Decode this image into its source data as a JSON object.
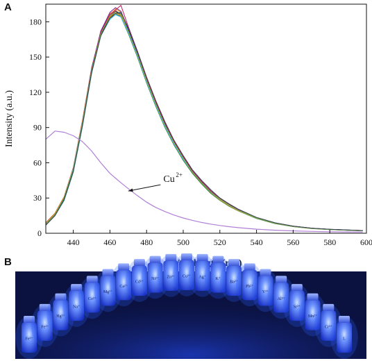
{
  "panel_a": {
    "letter": "A",
    "chart_data": {
      "type": "line",
      "xlabel": "Wavelength (nm)",
      "ylabel": "Intensity (a.u.)",
      "xlim": [
        425,
        600
      ],
      "ylim": [
        0,
        195
      ],
      "x_ticks": [
        440,
        460,
        480,
        500,
        520,
        540,
        560,
        580,
        600
      ],
      "y_ticks": [
        0,
        30,
        60,
        90,
        120,
        150,
        180
      ],
      "grid": false,
      "legend": "none",
      "x": [
        425,
        430,
        435,
        440,
        445,
        450,
        455,
        460,
        463,
        466,
        470,
        475,
        480,
        485,
        490,
        495,
        500,
        505,
        510,
        515,
        520,
        525,
        530,
        540,
        550,
        560,
        570,
        580,
        590,
        598
      ],
      "series": [
        {
          "color": "#d9534f",
          "values": [
            8,
            16,
            30,
            55,
            95,
            140,
            172,
            187,
            190,
            186,
            172,
            152,
            130,
            110,
            92,
            77,
            64,
            52,
            43,
            35,
            29,
            24,
            19.5,
            13,
            8.5,
            5.8,
            4.2,
            3.2,
            2.6,
            2.2
          ]
        },
        {
          "color": "#2e7d32",
          "values": [
            7,
            15,
            29,
            53,
            92,
            137,
            169,
            184,
            187,
            184,
            170,
            150,
            128,
            108,
            90,
            75,
            62,
            51,
            42,
            34,
            28,
            23,
            19,
            12.5,
            8.2,
            5.6,
            4,
            3.1,
            2.5,
            2.1
          ]
        },
        {
          "color": "#1565c0",
          "values": [
            9,
            17,
            31,
            56,
            96,
            141,
            171,
            185,
            189,
            187,
            173,
            153,
            131,
            111,
            93,
            78,
            65,
            53,
            44,
            36,
            29.5,
            24.5,
            20,
            13.2,
            8.7,
            6,
            4.3,
            3.3,
            2.7,
            2.3
          ]
        },
        {
          "color": "#f9a825",
          "values": [
            8,
            16,
            30,
            54,
            94,
            139,
            170,
            186,
            191,
            188,
            171,
            151,
            129,
            109,
            91,
            76,
            63,
            52,
            43,
            35,
            28.5,
            23.5,
            19.2,
            12.8,
            8.4,
            5.7,
            4.1,
            3.2,
            2.6,
            2.2
          ]
        },
        {
          "color": "#00897b",
          "values": [
            7,
            15,
            28,
            52,
            91,
            136,
            168,
            183,
            186,
            185,
            171,
            151,
            129,
            109,
            91,
            76,
            63,
            52,
            43,
            35,
            29,
            24,
            19.5,
            13,
            8.5,
            5.8,
            4.2,
            3.2,
            2.6,
            2.2
          ]
        },
        {
          "color": "#6a1b9a",
          "values": [
            8,
            16,
            30,
            55,
            95,
            140,
            172,
            188,
            192,
            189,
            174,
            154,
            132,
            112,
            94,
            79,
            66,
            54,
            45,
            37,
            30,
            25,
            20.5,
            13.5,
            8.9,
            6.1,
            4.4,
            3.4,
            2.8,
            2.3
          ]
        },
        {
          "color": "#ef6c00",
          "values": [
            9,
            17,
            31,
            56,
            96,
            140,
            170,
            184,
            188,
            185,
            172,
            152,
            130,
            110,
            92,
            77,
            64,
            52,
            43,
            35,
            29,
            24,
            19.5,
            13,
            8.5,
            5.8,
            4.2,
            3.2,
            2.6,
            2.2
          ]
        },
        {
          "color": "#5d4037",
          "values": [
            7,
            15,
            29,
            53,
            93,
            138,
            169,
            185,
            189,
            186,
            172,
            152,
            130,
            110,
            92,
            77,
            64,
            52,
            43,
            35,
            29,
            24,
            19.5,
            13,
            8.5,
            5.8,
            4.2,
            3.2,
            2.6,
            2.2
          ]
        },
        {
          "color": "#c2185b",
          "values": [
            8,
            16,
            30,
            54,
            94,
            139,
            171,
            186,
            190,
            194,
            176,
            155,
            132,
            112,
            94,
            78,
            65,
            53,
            44,
            36,
            29.5,
            24.5,
            20,
            13.2,
            8.7,
            6,
            4.3,
            3.3,
            2.7,
            2.3
          ]
        },
        {
          "color": "#4fc3f7",
          "values": [
            8,
            16,
            30,
            55,
            94,
            138,
            168,
            182,
            186,
            184,
            171,
            151,
            129,
            109,
            91,
            76,
            63,
            52,
            43,
            35,
            29,
            24,
            19.5,
            13,
            8.5,
            5.8,
            4.2,
            3.2,
            2.6,
            2.2
          ]
        },
        {
          "color": "#7cb342",
          "values": [
            8,
            16,
            30,
            54,
            93,
            138,
            170,
            185,
            188,
            186,
            172,
            152,
            130,
            110,
            92,
            77,
            64,
            52,
            43,
            35,
            29,
            24,
            19.5,
            13,
            8.5,
            5.8,
            4.2,
            3.2,
            2.6,
            2.2
          ]
        },
        {
          "color": "#37474f",
          "values": [
            7,
            15,
            29,
            53,
            92,
            137,
            168,
            183,
            187,
            188,
            175,
            155,
            133,
            113,
            95,
            79,
            66,
            54,
            45,
            37,
            30,
            25,
            20.5,
            13.5,
            8.9,
            6.1,
            4.4,
            3.4,
            2.8,
            2.3
          ]
        },
        {
          "name": "Cu2+",
          "color": "#b07fd6",
          "values": [
            80,
            87,
            86,
            83,
            78,
            70,
            60,
            51,
            47,
            43,
            38,
            32,
            26.5,
            22,
            18.5,
            15.5,
            13,
            11,
            9.2,
            7.8,
            6.6,
            5.6,
            4.8,
            3.5,
            2.6,
            2,
            1.6,
            1.3,
            1.1,
            1
          ]
        }
      ],
      "annotations": [
        {
          "text": "Cu",
          "sup": "2+",
          "x": 499,
          "y": 46,
          "arrow_to": [
            470,
            36
          ]
        }
      ]
    }
  },
  "panel_b": {
    "letter": "B",
    "background_color": "#0b1240",
    "glow_color": "#2a60ff",
    "vial_labels": [
      "Fe³⁺",
      "Fe²⁺",
      "Hg²⁺",
      "Na⁺",
      "Co²⁺",
      "Mg²⁺",
      "Ca²⁺",
      "Cd²⁺",
      "Ni²⁺",
      "Zn²⁺",
      "Cu²⁺",
      "Ag⁺",
      "K⁺",
      "Ba²⁺",
      "Pb²⁺",
      "Y³⁺",
      "Al³⁺",
      "Sr²⁺",
      "Mn²⁺",
      "Cr³⁺",
      "L"
    ]
  }
}
